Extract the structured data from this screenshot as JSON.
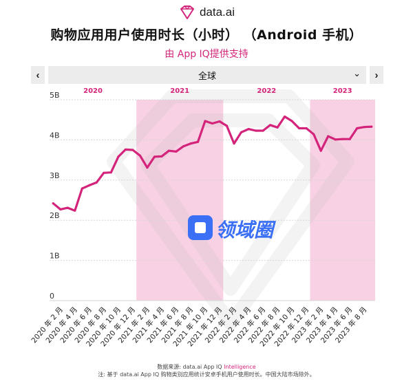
{
  "logo": {
    "text": "data.ai",
    "icon": "diamond-logo-icon"
  },
  "title": "购物应用用户使用时长（小时）  （Android 手机）",
  "subtitle": "由 App IQ提供支持",
  "nav": {
    "prev_label": "‹",
    "next_label": "›"
  },
  "region": {
    "selected": "全球",
    "chevron": "⌄"
  },
  "watermark": {
    "text": "领域圈",
    "icon": "lingyuquan-logo-icon"
  },
  "footer": {
    "line1_prefix": "数据来源: data.ai App IQ ",
    "line1_brand": "Intelligence",
    "line2": "注: 基于 data.ai App IQ 购物类别应用统计安卓手机用户使用时长。中国大陆市场除外。"
  },
  "colors": {
    "accent": "#d4237a",
    "band": "#f6c4dc",
    "line": "#d4237a"
  },
  "chart_data": {
    "type": "line",
    "years": [
      "2020",
      "2021",
      "2022",
      "2023"
    ],
    "shaded_years": [
      "2021",
      "2023"
    ],
    "ytick_labels": [
      "0",
      "1B",
      "2B",
      "3B",
      "4B",
      "5B"
    ],
    "ylim": [
      0,
      5
    ],
    "x_labels": [
      "2020 年 2 月",
      "2020 年 4 月",
      "2020 年 6 月",
      "2020 年 8 月",
      "2020 年 10 月",
      "2020 年 12 月",
      "2021 年 2 月",
      "2021 年 4 月",
      "2021 年 6 月",
      "2021 年 8 月",
      "2021 年 10 月",
      "2021 年 12 月",
      "2022 年 2 月",
      "2022 年 4 月",
      "2022 年 6 月",
      "2022 年 8 月",
      "2022 年 10 月",
      "2022 年 12 月",
      "2023 年 2 月",
      "2023 年 4 月",
      "2023 年 6 月",
      "2023 年 8 月"
    ],
    "months": [
      "2020-01",
      "2020-02",
      "2020-03",
      "2020-04",
      "2020-05",
      "2020-06",
      "2020-07",
      "2020-08",
      "2020-09",
      "2020-10",
      "2020-11",
      "2020-12",
      "2021-01",
      "2021-02",
      "2021-03",
      "2021-04",
      "2021-05",
      "2021-06",
      "2021-07",
      "2021-08",
      "2021-09",
      "2021-10",
      "2021-11",
      "2021-12",
      "2022-01",
      "2022-02",
      "2022-03",
      "2022-04",
      "2022-05",
      "2022-06",
      "2022-07",
      "2022-08",
      "2022-09",
      "2022-10",
      "2022-11",
      "2022-12",
      "2023-01",
      "2023-02",
      "2023-03",
      "2023-04",
      "2023-05",
      "2023-06",
      "2023-07",
      "2023-08",
      "2023-09"
    ],
    "values": [
      2.42,
      2.27,
      2.31,
      2.24,
      2.79,
      2.87,
      2.94,
      3.18,
      3.19,
      3.58,
      3.76,
      3.75,
      3.61,
      3.31,
      3.58,
      3.59,
      3.73,
      3.71,
      3.84,
      3.91,
      3.95,
      4.47,
      4.41,
      4.46,
      4.35,
      3.91,
      4.19,
      4.27,
      4.23,
      4.23,
      4.37,
      4.31,
      4.58,
      4.47,
      4.29,
      4.29,
      4.14,
      3.73,
      4.09,
      4.01,
      4.02,
      4.02,
      4.29,
      4.32,
      4.33
    ],
    "grid": true,
    "legend": "none"
  }
}
